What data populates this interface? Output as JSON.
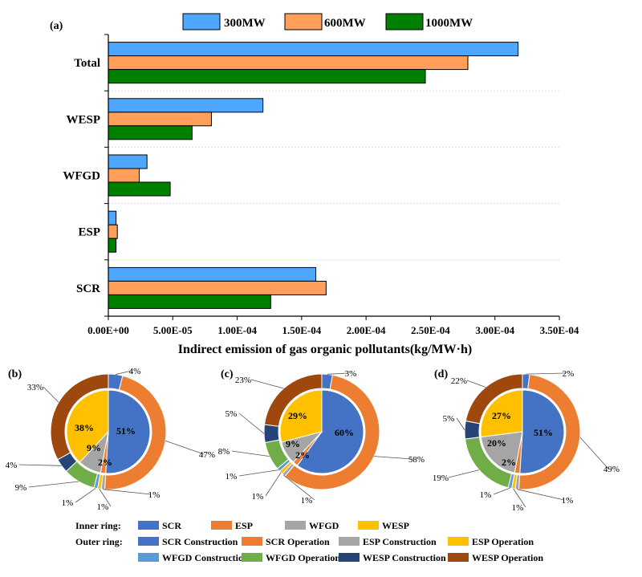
{
  "colors": {
    "s300": "#4da6ff",
    "s600": "#ff9f5a",
    "s1000": "#008000",
    "SCR": "#4472c4",
    "ESP": "#ed7d31",
    "WFGD": "#a5a5a5",
    "WESP": "#ffc000",
    "SCR Construction": "#4472c4",
    "SCR Operation": "#ed7d31",
    "ESP Construction": "#a5a5a5",
    "ESP Operation": "#ffc000",
    "WFGD Construction": "#5b9bd5",
    "WFGD Operation": "#70ad47",
    "WESP Construction": "#264478",
    "WESP Operation": "#9e480e"
  },
  "chart_data": [
    {
      "panel": "(a)",
      "type": "bar",
      "orientation": "horizontal",
      "categories": [
        "Total",
        "WESP",
        "WFGD",
        "ESP",
        "SCR"
      ],
      "series": [
        {
          "name": "300MW",
          "values": [
            0.000318,
            0.00012,
            3e-05,
            6e-06,
            0.000161
          ]
        },
        {
          "name": "600MW",
          "values": [
            0.000279,
            8e-05,
            2.4e-05,
            7e-06,
            0.000169
          ]
        },
        {
          "name": "1000MW",
          "values": [
            0.000246,
            6.5e-05,
            4.8e-05,
            6e-06,
            0.000126
          ]
        }
      ],
      "xlabel": "Indirect emission of gas organic pollutants(kg/MW·h)",
      "xlim": [
        0,
        0.00035
      ],
      "xticks": [
        "0.00E+00",
        "5.00E-05",
        "1.00E-04",
        "1.50E-04",
        "2.00E-04",
        "2.50E-04",
        "3.00E-04",
        "3.50E-04"
      ],
      "legend": "top"
    },
    {
      "panel": "(b)",
      "type": "pie",
      "inner": [
        {
          "label": "SCR",
          "value": 51
        },
        {
          "label": "ESP",
          "value": 2
        },
        {
          "label": "WFGD",
          "value": 9
        },
        {
          "label": "WESP",
          "value": 38
        }
      ],
      "outer": [
        {
          "label": "SCR Construction",
          "value": 4,
          "text": "4%"
        },
        {
          "label": "SCR Operation",
          "value": 47,
          "text": "47%"
        },
        {
          "label": "ESP Construction",
          "value": 1,
          "text": "1%"
        },
        {
          "label": "ESP Operation",
          "value": 1,
          "text": "1%"
        },
        {
          "label": "WFGD Construction",
          "value": 1,
          "text": "1%"
        },
        {
          "label": "WFGD Operation",
          "value": 9,
          "text": "9%"
        },
        {
          "label": "WESP Construction",
          "value": 4,
          "text": "4%"
        },
        {
          "label": "WESP Operation",
          "value": 33,
          "text": "33%"
        }
      ]
    },
    {
      "panel": "(c)",
      "type": "pie",
      "inner": [
        {
          "label": "SCR",
          "value": 60
        },
        {
          "label": "ESP",
          "value": 2
        },
        {
          "label": "WFGD",
          "value": 9
        },
        {
          "label": "WESP",
          "value": 29
        }
      ],
      "outer": [
        {
          "label": "SCR Construction",
          "value": 3,
          "text": "3%"
        },
        {
          "label": "SCR Operation",
          "value": 58,
          "text": "58%"
        },
        {
          "label": "ESP Construction",
          "value": 1,
          "text": "1%"
        },
        {
          "label": "ESP Operation",
          "value": 1,
          "text": "1%"
        },
        {
          "label": "WFGD Construction",
          "value": 1,
          "text": "1%"
        },
        {
          "label": "WFGD Operation",
          "value": 8,
          "text": "8%"
        },
        {
          "label": "WESP Construction",
          "value": 5,
          "text": "5%"
        },
        {
          "label": "WESP Operation",
          "value": 23,
          "text": "23%"
        }
      ]
    },
    {
      "panel": "(d)",
      "type": "pie",
      "inner": [
        {
          "label": "SCR",
          "value": 51
        },
        {
          "label": "ESP",
          "value": 2
        },
        {
          "label": "WFGD",
          "value": 20
        },
        {
          "label": "WESP",
          "value": 27
        }
      ],
      "outer": [
        {
          "label": "SCR Construction",
          "value": 2,
          "text": "2%"
        },
        {
          "label": "SCR Operation",
          "value": 49,
          "text": "49%"
        },
        {
          "label": "ESP Construction",
          "value": 1,
          "text": "1%"
        },
        {
          "label": "ESP Operation",
          "value": 1,
          "text": "1%"
        },
        {
          "label": "WFGD Construction",
          "value": 1,
          "text": "1%"
        },
        {
          "label": "WFGD Operation",
          "value": 19,
          "text": "19%"
        },
        {
          "label": "WESP Construction",
          "value": 5,
          "text": "5%"
        },
        {
          "label": "WESP Operation",
          "value": 22,
          "text": "22%"
        }
      ]
    }
  ],
  "legend_pies": {
    "inner_title": "Inner ring:",
    "outer_title": "Outer ring:",
    "inner_items": [
      "SCR",
      "ESP",
      "WFGD",
      "WESP"
    ],
    "outer_items": [
      "SCR Construction",
      "SCR Operation",
      "ESP Construction",
      "ESP Operation",
      "WFGD Construction",
      "WFGD Operation",
      "WESP Construction",
      "WESP Operation"
    ]
  }
}
